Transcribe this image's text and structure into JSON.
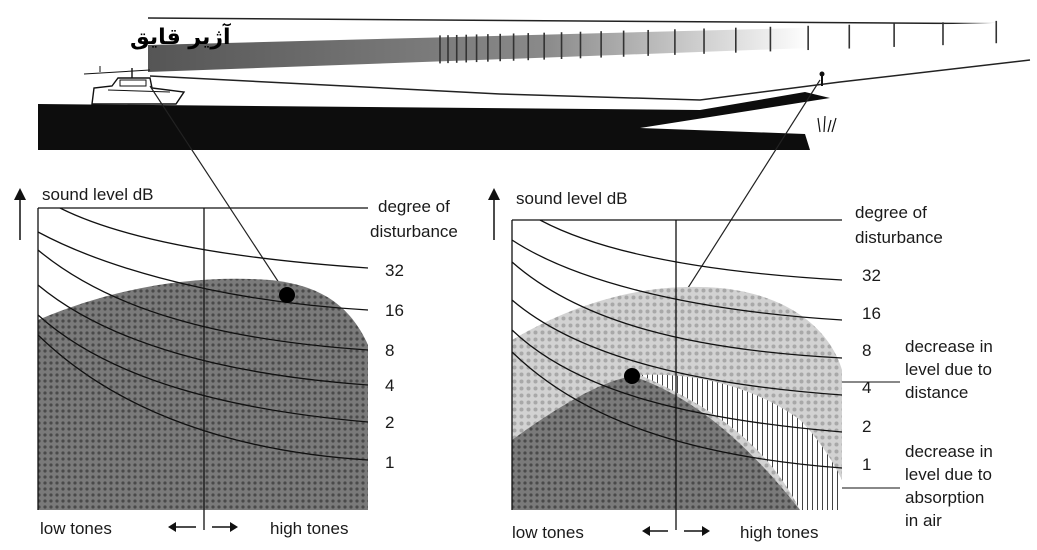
{
  "header_label": "آژیر قایق",
  "left_chart": {
    "y_axis_label": "sound level dB",
    "disturbance_title_line1": "degree of",
    "disturbance_title_line2": "disturbance",
    "disturbance_levels": [
      "32",
      "16",
      "8",
      "4",
      "2",
      "1"
    ],
    "x_label_low": "low tones",
    "x_label_high": "high tones"
  },
  "right_chart": {
    "y_axis_label": "sound level dB",
    "disturbance_title_line1": "degree of",
    "disturbance_title_line2": "disturbance",
    "disturbance_levels": [
      "32",
      "16",
      "8",
      "4",
      "2",
      "1"
    ],
    "x_label_low": "low tones",
    "x_label_high": "high tones",
    "annotation_distance": [
      "decrease in",
      "level due to",
      "distance"
    ],
    "annotation_absorption": [
      "decrease in",
      "level due to",
      "absorption",
      "in air"
    ]
  },
  "colors": {
    "ink": "#111111",
    "dark_fill": "#6e6e6e",
    "light_fill": "#c4c4c4",
    "background": "#ffffff"
  }
}
